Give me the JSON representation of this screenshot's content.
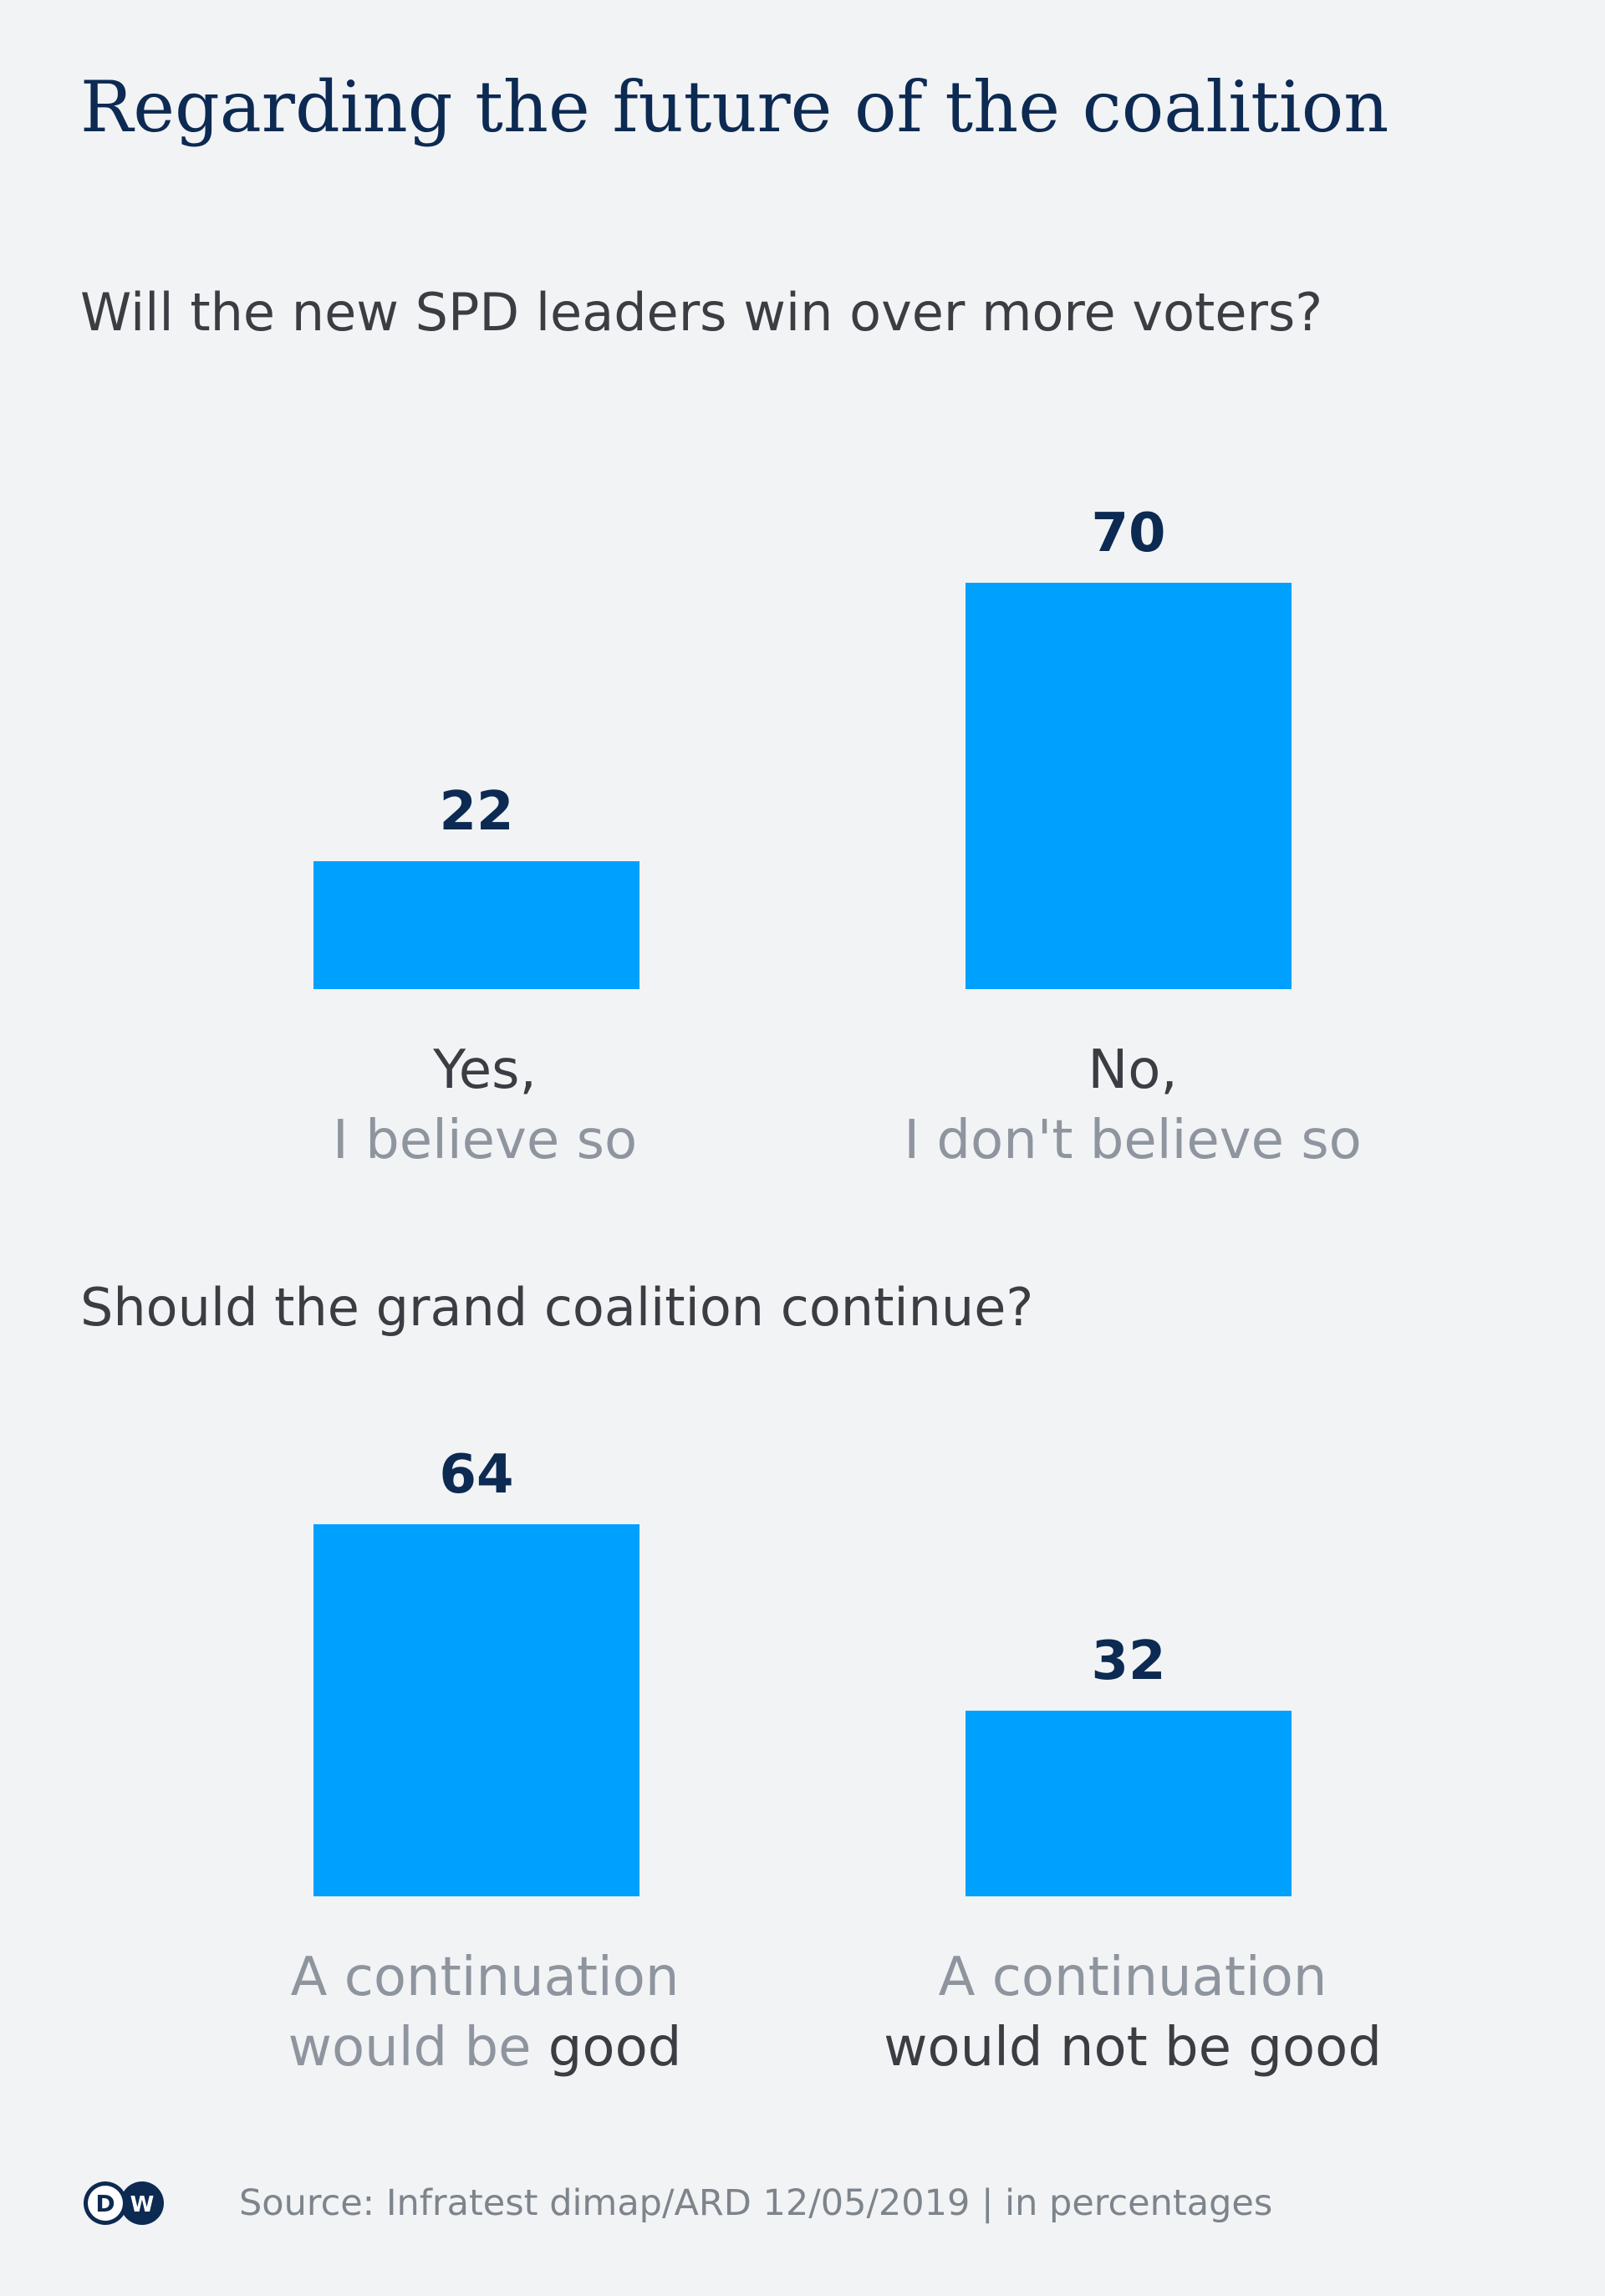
{
  "title": "Regarding the future of the coalition",
  "logo": "dw-logo",
  "source": "Source: Infratest dimap/ARD 12/05/2019 | in percentages",
  "colors": {
    "bar": "#00a0ff",
    "title": "#0c2a52",
    "value": "#0c2a52",
    "text_dark": "#3a3d42",
    "text_light": "#8e959e",
    "background": "#f2f3f5"
  },
  "chart_data": [
    {
      "type": "bar",
      "title": "Will the new SPD leaders win over more voters?",
      "unit": "percentages",
      "ylim": [
        0,
        100
      ],
      "categories": [
        {
          "line1": "Yes,",
          "line2": "I believe so"
        },
        {
          "line1": "No,",
          "line2": "I don't believe so"
        }
      ],
      "values": [
        22,
        70
      ]
    },
    {
      "type": "bar",
      "title": "Should the grand coalition continue?",
      "unit": "percentages",
      "ylim": [
        0,
        100
      ],
      "categories": [
        {
          "line1": "A continuation",
          "line2a": "would be",
          "line2b": "good"
        },
        {
          "line1": "A continuation",
          "line2": "would not be good"
        }
      ],
      "values": [
        64,
        32
      ]
    }
  ]
}
